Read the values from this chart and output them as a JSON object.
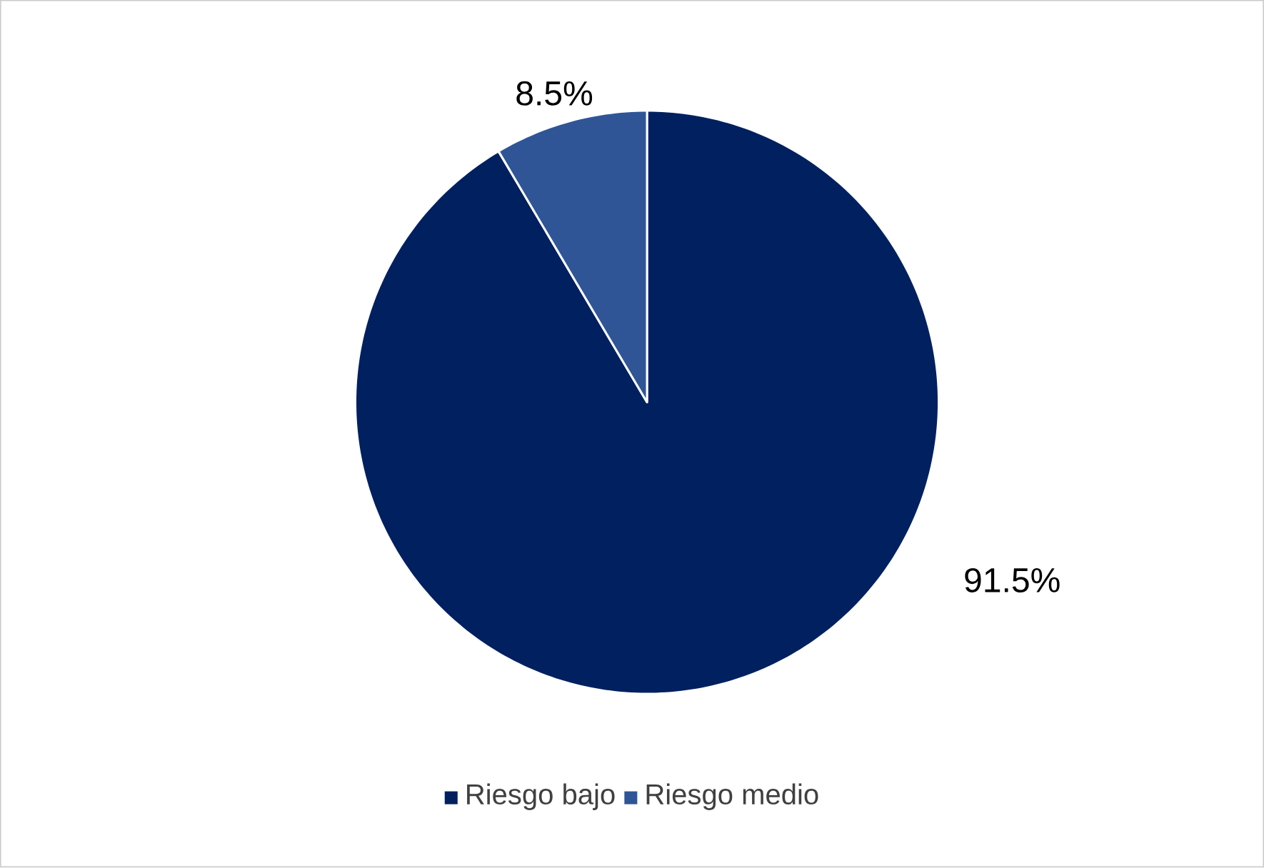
{
  "chart_data": {
    "type": "pie",
    "categories": [
      "Riesgo bajo",
      "Riesgo medio"
    ],
    "values": [
      91.5,
      8.5
    ],
    "colors": [
      "#002060",
      "#2f5597"
    ],
    "value_labels": [
      "91.5%",
      "8.5%"
    ],
    "legend": "bottom"
  }
}
